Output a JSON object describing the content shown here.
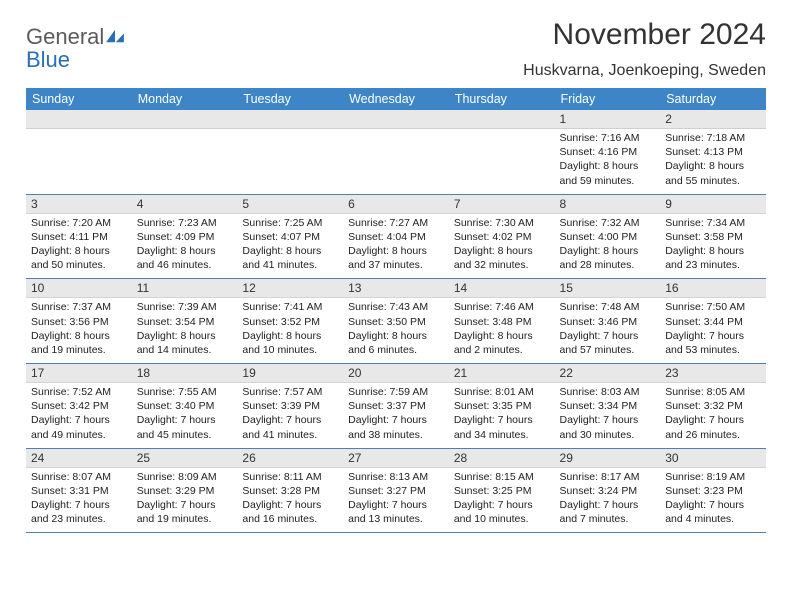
{
  "brand": {
    "general": "General",
    "blue": "Blue"
  },
  "title": "November 2024",
  "location": "Huskvarna, Joenkoeping, Sweden",
  "colors": {
    "header_bg": "#3d85c6",
    "header_text": "#ffffff",
    "daynum_bg": "#e8e8e8",
    "text": "#222222",
    "rule": "#5a7ca8",
    "logo_gray": "#5b5b5b",
    "logo_blue": "#2a6fb5"
  },
  "weekdays": [
    "Sunday",
    "Monday",
    "Tuesday",
    "Wednesday",
    "Thursday",
    "Friday",
    "Saturday"
  ],
  "weeks": [
    [
      null,
      null,
      null,
      null,
      null,
      {
        "n": "1",
        "sunrise": "7:16 AM",
        "sunset": "4:16 PM",
        "day_h": 8,
        "day_m": 59
      },
      {
        "n": "2",
        "sunrise": "7:18 AM",
        "sunset": "4:13 PM",
        "day_h": 8,
        "day_m": 55
      }
    ],
    [
      {
        "n": "3",
        "sunrise": "7:20 AM",
        "sunset": "4:11 PM",
        "day_h": 8,
        "day_m": 50
      },
      {
        "n": "4",
        "sunrise": "7:23 AM",
        "sunset": "4:09 PM",
        "day_h": 8,
        "day_m": 46
      },
      {
        "n": "5",
        "sunrise": "7:25 AM",
        "sunset": "4:07 PM",
        "day_h": 8,
        "day_m": 41
      },
      {
        "n": "6",
        "sunrise": "7:27 AM",
        "sunset": "4:04 PM",
        "day_h": 8,
        "day_m": 37
      },
      {
        "n": "7",
        "sunrise": "7:30 AM",
        "sunset": "4:02 PM",
        "day_h": 8,
        "day_m": 32
      },
      {
        "n": "8",
        "sunrise": "7:32 AM",
        "sunset": "4:00 PM",
        "day_h": 8,
        "day_m": 28
      },
      {
        "n": "9",
        "sunrise": "7:34 AM",
        "sunset": "3:58 PM",
        "day_h": 8,
        "day_m": 23
      }
    ],
    [
      {
        "n": "10",
        "sunrise": "7:37 AM",
        "sunset": "3:56 PM",
        "day_h": 8,
        "day_m": 19
      },
      {
        "n": "11",
        "sunrise": "7:39 AM",
        "sunset": "3:54 PM",
        "day_h": 8,
        "day_m": 14
      },
      {
        "n": "12",
        "sunrise": "7:41 AM",
        "sunset": "3:52 PM",
        "day_h": 8,
        "day_m": 10
      },
      {
        "n": "13",
        "sunrise": "7:43 AM",
        "sunset": "3:50 PM",
        "day_h": 8,
        "day_m": 6
      },
      {
        "n": "14",
        "sunrise": "7:46 AM",
        "sunset": "3:48 PM",
        "day_h": 8,
        "day_m": 2
      },
      {
        "n": "15",
        "sunrise": "7:48 AM",
        "sunset": "3:46 PM",
        "day_h": 7,
        "day_m": 57
      },
      {
        "n": "16",
        "sunrise": "7:50 AM",
        "sunset": "3:44 PM",
        "day_h": 7,
        "day_m": 53
      }
    ],
    [
      {
        "n": "17",
        "sunrise": "7:52 AM",
        "sunset": "3:42 PM",
        "day_h": 7,
        "day_m": 49
      },
      {
        "n": "18",
        "sunrise": "7:55 AM",
        "sunset": "3:40 PM",
        "day_h": 7,
        "day_m": 45
      },
      {
        "n": "19",
        "sunrise": "7:57 AM",
        "sunset": "3:39 PM",
        "day_h": 7,
        "day_m": 41
      },
      {
        "n": "20",
        "sunrise": "7:59 AM",
        "sunset": "3:37 PM",
        "day_h": 7,
        "day_m": 38
      },
      {
        "n": "21",
        "sunrise": "8:01 AM",
        "sunset": "3:35 PM",
        "day_h": 7,
        "day_m": 34
      },
      {
        "n": "22",
        "sunrise": "8:03 AM",
        "sunset": "3:34 PM",
        "day_h": 7,
        "day_m": 30
      },
      {
        "n": "23",
        "sunrise": "8:05 AM",
        "sunset": "3:32 PM",
        "day_h": 7,
        "day_m": 26
      }
    ],
    [
      {
        "n": "24",
        "sunrise": "8:07 AM",
        "sunset": "3:31 PM",
        "day_h": 7,
        "day_m": 23
      },
      {
        "n": "25",
        "sunrise": "8:09 AM",
        "sunset": "3:29 PM",
        "day_h": 7,
        "day_m": 19
      },
      {
        "n": "26",
        "sunrise": "8:11 AM",
        "sunset": "3:28 PM",
        "day_h": 7,
        "day_m": 16
      },
      {
        "n": "27",
        "sunrise": "8:13 AM",
        "sunset": "3:27 PM",
        "day_h": 7,
        "day_m": 13
      },
      {
        "n": "28",
        "sunrise": "8:15 AM",
        "sunset": "3:25 PM",
        "day_h": 7,
        "day_m": 10
      },
      {
        "n": "29",
        "sunrise": "8:17 AM",
        "sunset": "3:24 PM",
        "day_h": 7,
        "day_m": 7
      },
      {
        "n": "30",
        "sunrise": "8:19 AM",
        "sunset": "3:23 PM",
        "day_h": 7,
        "day_m": 4
      }
    ]
  ]
}
